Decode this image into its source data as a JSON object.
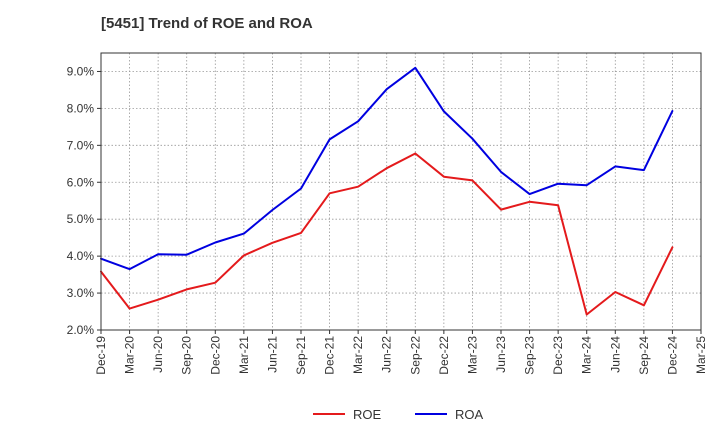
{
  "chart_data": {
    "type": "line",
    "title": "[5451]  Trend of ROE and ROA",
    "xlabel": "",
    "ylabel": "",
    "categories": [
      "Dec-19",
      "Mar-20",
      "Jun-20",
      "Sep-20",
      "Dec-20",
      "Mar-21",
      "Jun-21",
      "Sep-21",
      "Dec-21",
      "Mar-22",
      "Jun-22",
      "Sep-22",
      "Dec-22",
      "Mar-23",
      "Jun-23",
      "Sep-23",
      "Dec-23",
      "Mar-24",
      "Jun-24",
      "Sep-24",
      "Dec-24",
      "Mar-25"
    ],
    "ylim": [
      2.0,
      9.5
    ],
    "yticks": [
      2.0,
      3.0,
      4.0,
      5.0,
      6.0,
      7.0,
      8.0,
      9.0
    ],
    "ytick_labels": [
      "2.0%",
      "3.0%",
      "4.0%",
      "5.0%",
      "6.0%",
      "7.0%",
      "8.0%",
      "9.0%"
    ],
    "grid": true,
    "legend_position": "bottom-center",
    "series": [
      {
        "name": "ROE",
        "color": "#e41a1c",
        "values": [
          3.58,
          2.58,
          2.82,
          3.1,
          3.28,
          4.02,
          4.36,
          4.63,
          5.7,
          5.88,
          6.38,
          6.78,
          6.15,
          6.05,
          5.26,
          5.47,
          5.38,
          2.42,
          3.03,
          2.67,
          4.24,
          null
        ]
      },
      {
        "name": "ROA",
        "color": "#0000e0",
        "values": [
          3.93,
          3.65,
          4.05,
          4.04,
          4.37,
          4.61,
          5.25,
          5.83,
          7.16,
          7.65,
          8.52,
          9.1,
          7.92,
          7.18,
          6.28,
          5.68,
          5.96,
          5.92,
          6.43,
          6.33,
          7.93,
          null
        ]
      }
    ]
  }
}
